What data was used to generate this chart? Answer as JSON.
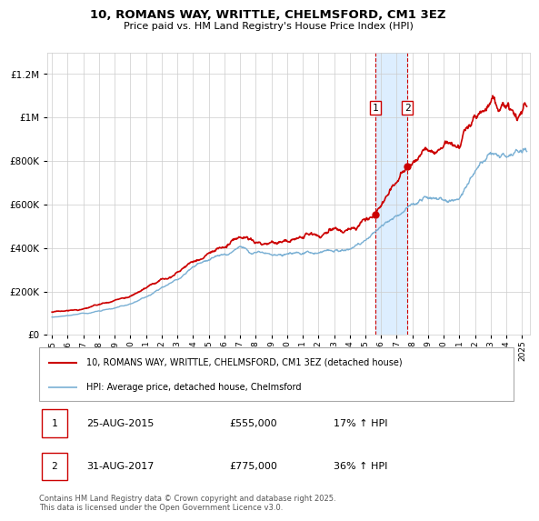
{
  "title_line1": "10, ROMANS WAY, WRITTLE, CHELMSFORD, CM1 3EZ",
  "title_line2": "Price paid vs. HM Land Registry's House Price Index (HPI)",
  "ylabel_ticks": [
    "£0",
    "£200K",
    "£400K",
    "£600K",
    "£800K",
    "£1M",
    "£1.2M"
  ],
  "ytick_vals": [
    0,
    200000,
    400000,
    600000,
    800000,
    1000000,
    1200000
  ],
  "ylim": [
    0,
    1300000
  ],
  "xlim_start": 1994.7,
  "xlim_end": 2025.5,
  "xticks": [
    1995,
    1996,
    1997,
    1998,
    1999,
    2000,
    2001,
    2002,
    2003,
    2004,
    2005,
    2006,
    2007,
    2008,
    2009,
    2010,
    2011,
    2012,
    2013,
    2014,
    2015,
    2016,
    2017,
    2018,
    2019,
    2020,
    2021,
    2022,
    2023,
    2024,
    2025
  ],
  "sale1_x": 2015.65,
  "sale1_y": 555000,
  "sale2_x": 2017.67,
  "sale2_y": 775000,
  "shading_color": "#ddeeff",
  "line_color_red": "#cc0000",
  "line_color_blue": "#7ab0d4",
  "grid_color": "#cccccc",
  "background_color": "#ffffff",
  "legend_entries": [
    "10, ROMANS WAY, WRITTLE, CHELMSFORD, CM1 3EZ (detached house)",
    "HPI: Average price, detached house, Chelmsford"
  ],
  "annotation1": [
    "1",
    "25-AUG-2015",
    "£555,000",
    "17% ↑ HPI"
  ],
  "annotation2": [
    "2",
    "31-AUG-2017",
    "£775,000",
    "36% ↑ HPI"
  ],
  "footnote": "Contains HM Land Registry data © Crown copyright and database right 2025.\nThis data is licensed under the Open Government Licence v3.0."
}
